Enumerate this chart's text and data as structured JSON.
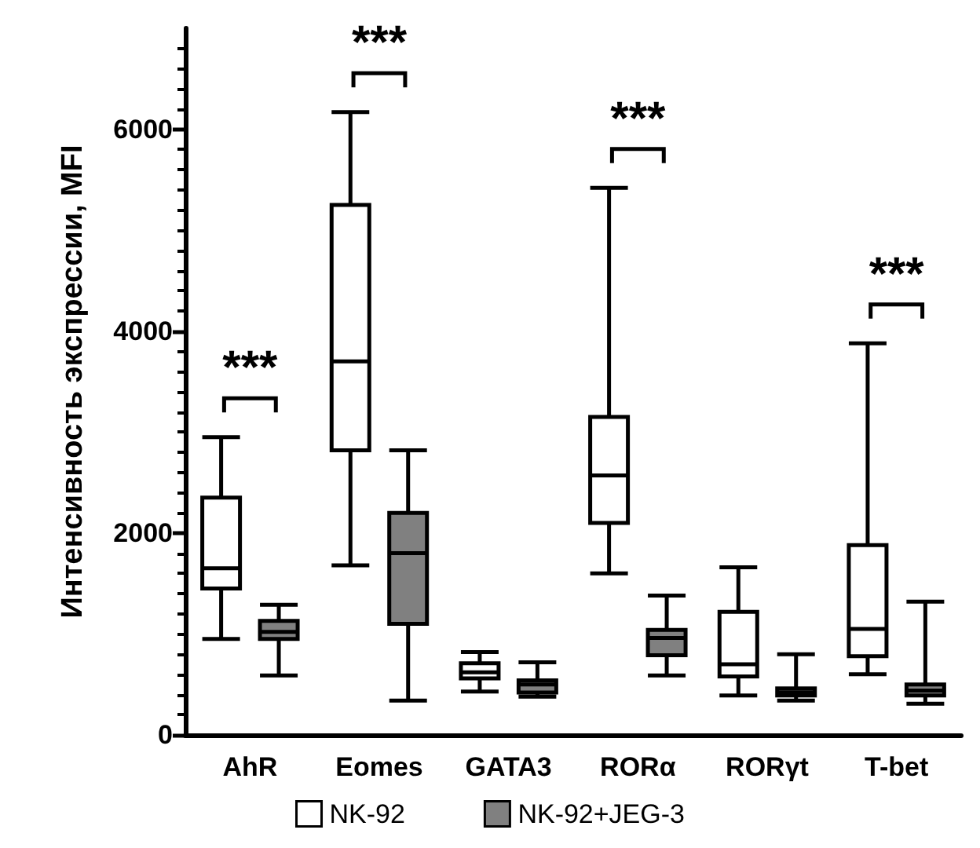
{
  "chart_data": {
    "type": "box",
    "ylabel": "Интенсивность экспрессии, MFI",
    "categories": [
      "AhR",
      "Eomes",
      "GATA3",
      "RORα",
      "RORγt",
      "T-bet"
    ],
    "ylim": [
      0,
      7000
    ],
    "yticks": [
      0,
      2000,
      4000,
      6000
    ],
    "grid": false,
    "legend": "bottom",
    "series": [
      {
        "name": "NK-92",
        "color": "#ffffff",
        "boxes": [
          {
            "low": 950,
            "q1": 1450,
            "median": 1650,
            "q3": 2350,
            "high": 2950
          },
          {
            "low": 1680,
            "q1": 2820,
            "median": 3700,
            "q3": 5250,
            "high": 6170
          },
          {
            "low": 430,
            "q1": 560,
            "median": 620,
            "q3": 710,
            "high": 820
          },
          {
            "low": 1600,
            "q1": 2100,
            "median": 2570,
            "q3": 3150,
            "high": 5420
          },
          {
            "low": 390,
            "q1": 580,
            "median": 700,
            "q3": 1220,
            "high": 1660
          },
          {
            "low": 600,
            "q1": 780,
            "median": 1050,
            "q3": 1880,
            "high": 3880
          }
        ]
      },
      {
        "name": "NK-92+JEG-3",
        "color": "#808080",
        "boxes": [
          {
            "low": 590,
            "q1": 950,
            "median": 1020,
            "q3": 1130,
            "high": 1290
          },
          {
            "low": 340,
            "q1": 1100,
            "median": 1800,
            "q3": 2200,
            "high": 2820
          },
          {
            "low": 380,
            "q1": 420,
            "median": 500,
            "q3": 540,
            "high": 720
          },
          {
            "low": 590,
            "q1": 790,
            "median": 960,
            "q3": 1040,
            "high": 1380
          },
          {
            "low": 340,
            "q1": 390,
            "median": 420,
            "q3": 460,
            "high": 800
          },
          {
            "low": 310,
            "q1": 390,
            "median": 440,
            "q3": 500,
            "high": 1320
          }
        ]
      }
    ],
    "annotations": [
      "***",
      "***",
      "***",
      "***"
    ]
  }
}
